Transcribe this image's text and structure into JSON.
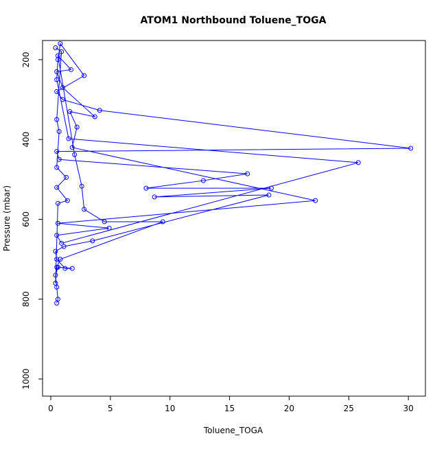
{
  "chart_data": {
    "type": "line",
    "title": "ATOM1 Northbound Toluene_TOGA",
    "x_label": "Toluene_TOGA",
    "y_label": "Pressure (mbar)",
    "x": [
      0.5,
      0.6,
      0.5,
      0.4,
      0.6,
      1.8,
      1.2,
      0.5,
      0.4,
      1.1,
      3.5,
      18.3,
      8.7,
      18.5,
      8.0,
      12.8,
      16.5,
      0.7,
      0.5,
      30.2,
      4.1,
      1.0,
      0.5,
      2.8,
      0.8,
      0.6,
      0.5,
      1.5,
      25.8,
      0.9,
      0.5,
      4.9,
      0.6,
      22.2,
      1.8,
      2.2,
      1.6,
      3.7,
      1.0,
      0.5,
      1.7,
      0.6,
      2.0,
      2.6,
      2.8,
      4.5,
      9.4,
      0.8,
      0.5,
      0.4,
      0.6,
      1.4,
      0.5,
      1.3,
      0.5,
      0.7,
      0.5,
      0.9,
      0.4
    ],
    "series": [
      {
        "color": "#0000ff",
        "values": [
          810,
          800,
          770,
          740,
          720,
          723,
          723,
          700,
          680,
          668,
          654,
          539,
          544,
          522,
          522,
          503,
          486,
          450,
          430,
          422,
          327,
          300,
          280,
          240,
          160,
          200,
          250,
          398,
          458,
          660,
          640,
          622,
          610,
          553,
          420,
          369,
          330,
          343,
          270,
          230,
          225,
          190,
          438,
          517,
          575,
          606,
          606,
          700,
          720,
          760,
          560,
          553,
          520,
          495,
          470,
          380,
          350,
          180,
          170
        ]
      }
    ],
    "xlim": [
      -0.69,
      31.43
    ],
    "ylim": [
      1043,
      152
    ],
    "invert_y": true,
    "xticks": [
      0,
      5,
      10,
      15,
      20,
      25,
      30
    ],
    "yticks": [
      200,
      400,
      600,
      800,
      1000
    ]
  }
}
